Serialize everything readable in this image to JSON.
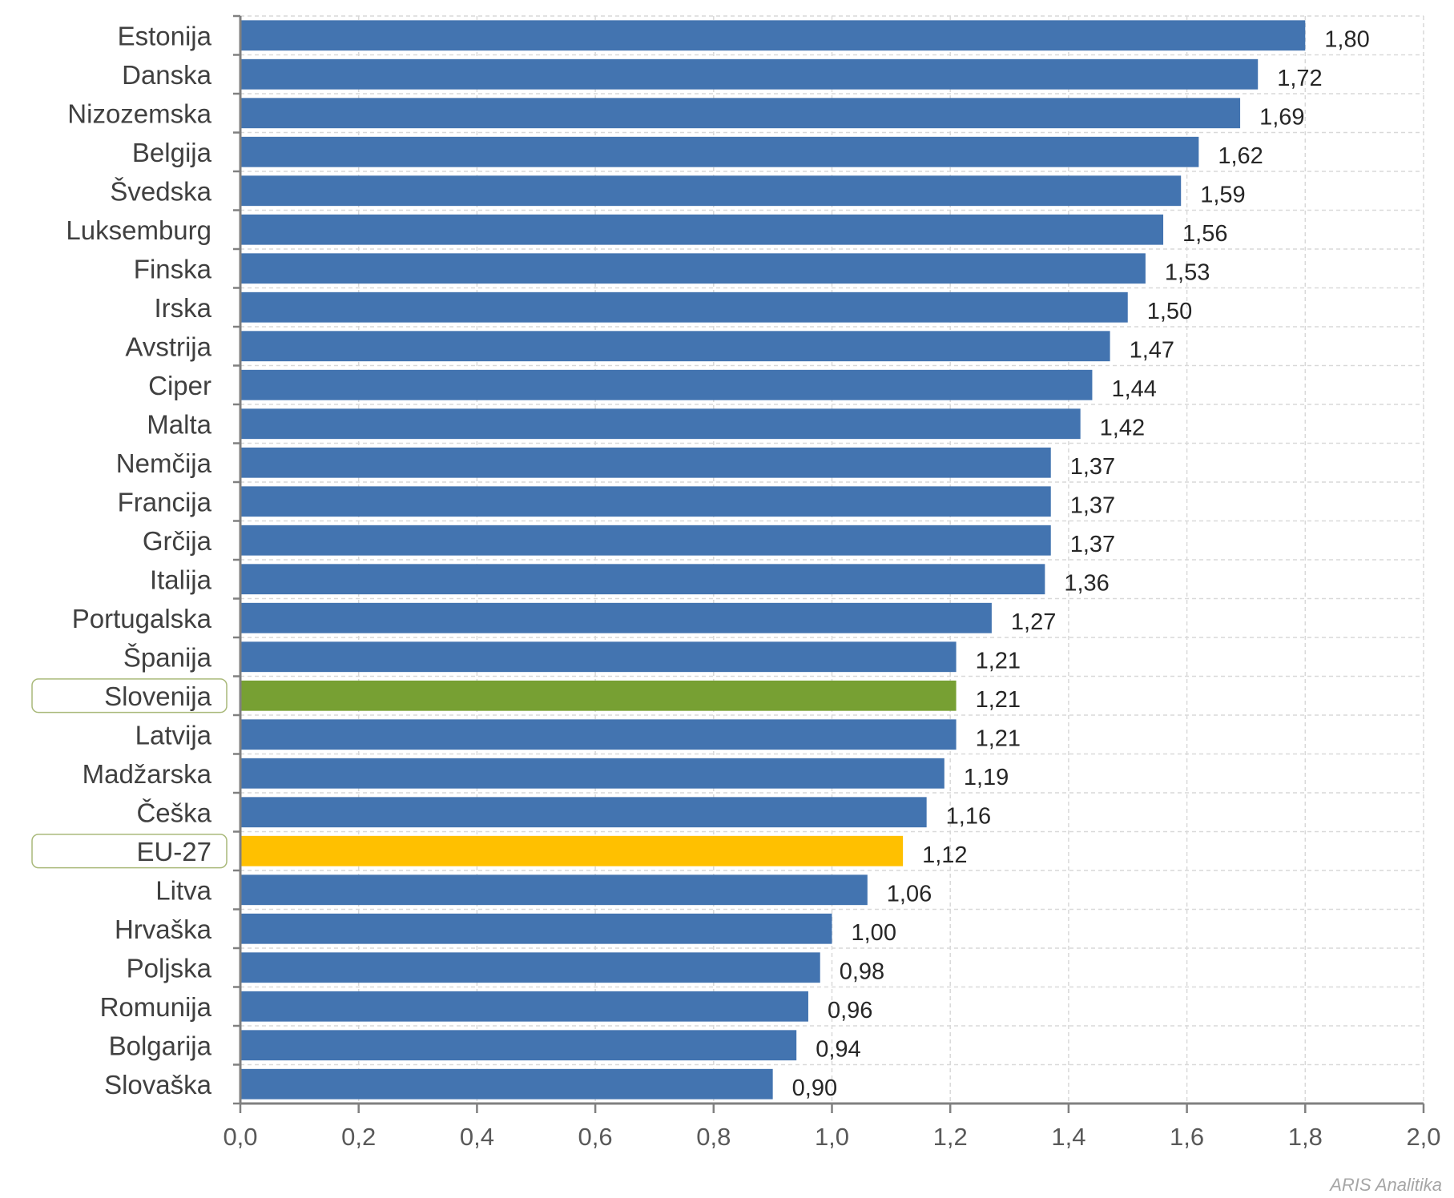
{
  "chart_data": {
    "type": "bar",
    "orientation": "horizontal",
    "title": "",
    "xlabel": "",
    "ylabel": "",
    "xlim": [
      0,
      2.0
    ],
    "x_ticks": [
      "0,0",
      "0,2",
      "0,4",
      "0,6",
      "0,8",
      "1,0",
      "1,2",
      "1,4",
      "1,6",
      "1,8",
      "2,0"
    ],
    "x_tick_values": [
      0,
      0.2,
      0.4,
      0.6,
      0.8,
      1.0,
      1.2,
      1.4,
      1.6,
      1.8,
      2.0
    ],
    "grid": true,
    "legend": "none",
    "categories": [
      "Estonija",
      "Danska",
      "Nizozemska",
      "Belgija",
      "Švedska",
      "Luksemburg",
      "Finska",
      "Irska",
      "Avstrija",
      "Ciper",
      "Malta",
      "Nemčija",
      "Francija",
      "Grčija",
      "Italija",
      "Portugalska",
      "Španija",
      "Slovenija",
      "Latvija",
      "Madžarska",
      "Češka",
      "EU-27",
      "Litva",
      "Hrvaška",
      "Poljska",
      "Romunija",
      "Bolgarija",
      "Slovaška"
    ],
    "values": [
      1.8,
      1.72,
      1.69,
      1.62,
      1.59,
      1.56,
      1.53,
      1.5,
      1.47,
      1.44,
      1.42,
      1.37,
      1.37,
      1.37,
      1.36,
      1.27,
      1.21,
      1.21,
      1.21,
      1.19,
      1.16,
      1.12,
      1.06,
      1.0,
      0.98,
      0.96,
      0.94,
      0.9
    ],
    "value_labels": [
      "1,80",
      "1,72",
      "1,69",
      "1,62",
      "1,59",
      "1,56",
      "1,53",
      "1,50",
      "1,47",
      "1,44",
      "1,42",
      "1,37",
      "1,37",
      "1,37",
      "1,36",
      "1,27",
      "1,21",
      "1,21",
      "1,21",
      "1,19",
      "1,16",
      "1,12",
      "1,06",
      "1,00",
      "0,98",
      "0,96",
      "0,94",
      "0,90"
    ],
    "highlighted": {
      "Slovenija": {
        "color": "#77a033",
        "boxed_label": true
      },
      "EU-27": {
        "color": "#ffc000",
        "boxed_label": true
      }
    },
    "colors": {
      "bar": "#4374b0",
      "grid": "#d9d9d9",
      "axis": "#808080",
      "label_box_border": "#a9b97a"
    }
  },
  "watermark": "ARIS Analitika"
}
